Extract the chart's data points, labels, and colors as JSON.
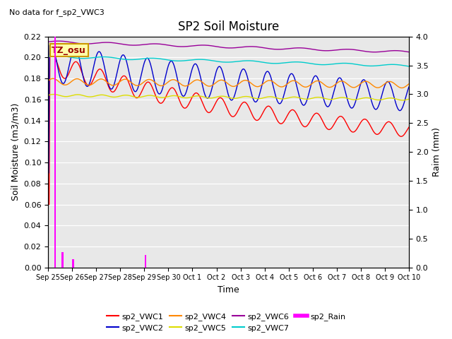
{
  "title": "SP2 Soil Moisture",
  "subtitle": "No data for f_sp2_VWC3",
  "xlabel": "Time",
  "ylabel_left": "Soil Moisture (m3/m3)",
  "ylabel_right": "Raim (mm)",
  "annotation": "TZ_osu",
  "ylim_left": [
    0.0,
    0.22
  ],
  "ylim_right": [
    0.0,
    4.0
  ],
  "line_colors": {
    "VWC1": "#ff0000",
    "VWC2": "#0000cc",
    "VWC4": "#ff8800",
    "VWC5": "#dddd00",
    "VWC6": "#990099",
    "VWC7": "#00cccc",
    "Rain": "#ff00ff"
  },
  "tick_labels": [
    "Sep 25",
    "Sep 26",
    "Sep 27",
    "Sep 28",
    "Sep 29",
    "Sep 30",
    "Oct 1",
    "Oct 2",
    "Oct 3",
    "Oct 4",
    "Oct 5",
    "Oct 6",
    "Oct 7",
    "Oct 8",
    "Oct 9",
    "Oct 10"
  ],
  "yticks_left": [
    0.0,
    0.02,
    0.04,
    0.06,
    0.08,
    0.1,
    0.12,
    0.14,
    0.16,
    0.18,
    0.2,
    0.22
  ],
  "yticks_right": [
    0.0,
    0.5,
    1.0,
    1.5,
    2.0,
    2.5,
    3.0,
    3.5,
    4.0
  ],
  "num_points": 1440,
  "num_days": 15
}
